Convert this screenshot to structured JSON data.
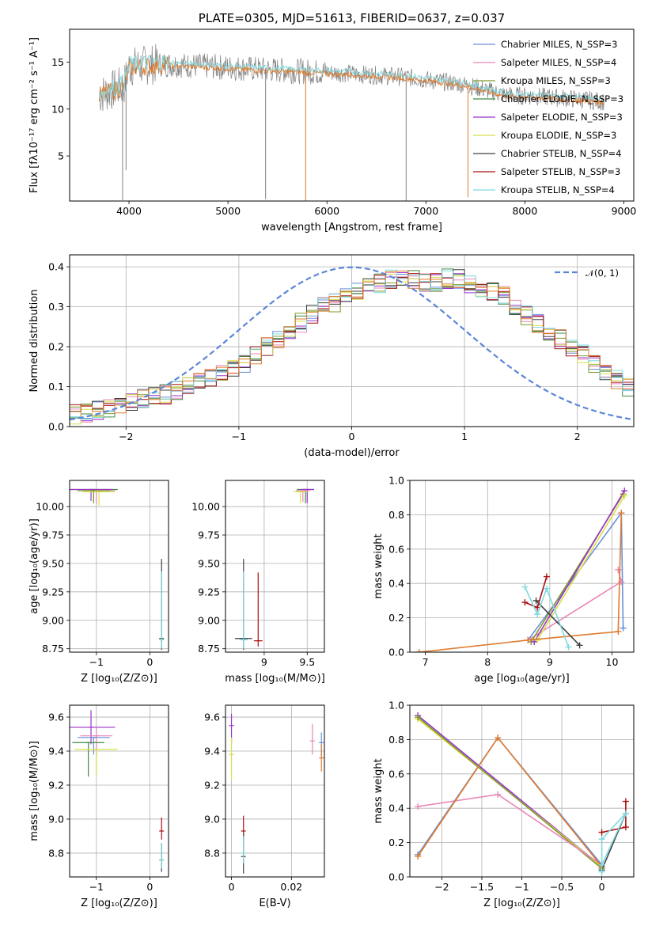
{
  "chart_data": [
    {
      "panel": "spectrum",
      "type": "line",
      "title": "PLATE=0305, MJD=51613, FIBERID=0637, z=0.037",
      "xlabel": "wavelength [Angstrom, rest frame]",
      "ylabel": "Flux [fλ10⁻¹⁷ erg cm⁻² s⁻¹ A⁻¹]",
      "xlim": [
        3400,
        9100
      ],
      "ylim": [
        0.2,
        18.5
      ],
      "xticks": [
        4000,
        5000,
        6000,
        7000,
        8000,
        9000
      ],
      "yticks": [
        5,
        10,
        15
      ],
      "grid": false,
      "data_color": "#808080",
      "model_colors": [
        "#e07b2e",
        "#7fd9e0"
      ],
      "data_trend": {
        "x": [
          3700,
          3950,
          4000,
          4300,
          4700,
          5200,
          5800,
          6200,
          6800,
          7400,
          7800,
          8200,
          8600,
          8800
        ],
        "y": [
          11.5,
          12.5,
          14.5,
          14.8,
          14.6,
          14.3,
          14.0,
          13.8,
          13.4,
          12.6,
          11.5,
          11.3,
          11.0,
          10.8
        ]
      },
      "dips": [
        {
          "x": 3935,
          "y": 0.3
        },
        {
          "x": 3970,
          "y": 3.5
        },
        {
          "x": 5380,
          "y": 0.4
        },
        {
          "x": 5785,
          "y": 0.2
        },
        {
          "x": 6800,
          "y": 0.2
        },
        {
          "x": 7425,
          "y": 0.6
        }
      ],
      "legend_position": "upper right",
      "legend": [
        {
          "label": "Chabrier MILES, N_SSP=3",
          "color": "#6a8fd8"
        },
        {
          "label": "Salpeter MILES, N_SSP=4",
          "color": "#e887b6"
        },
        {
          "label": "Kroupa MILES, N_SSP=3",
          "color": "#7f9a2a"
        },
        {
          "label": "Chabrier ELODIE, N_SSP=3",
          "color": "#3f8a45"
        },
        {
          "label": "Salpeter ELODIE, N_SSP=3",
          "color": "#9a33c8"
        },
        {
          "label": "Kroupa ELODIE, N_SSP=3",
          "color": "#d8e04a"
        },
        {
          "label": "Chabrier STELIB, N_SSP=4",
          "color": "#404040"
        },
        {
          "label": "Salpeter STELIB, N_SSP=3",
          "color": "#aa1010"
        },
        {
          "label": "Kroupa STELIB, N_SSP=4",
          "color": "#7fd9e0"
        }
      ]
    },
    {
      "panel": "residuals",
      "type": "histogram",
      "xlabel": "(data-model)/error",
      "ylabel": "Normed distribution",
      "xlim": [
        -2.5,
        2.5
      ],
      "ylim": [
        0,
        0.43
      ],
      "xticks": [
        -2,
        -1,
        0,
        1,
        2
      ],
      "yticks": [
        0.0,
        0.1,
        0.2,
        0.3,
        0.4
      ],
      "grid": true,
      "bin_width": 0.1,
      "bin_start": -2.5,
      "shape": [
        0.03,
        0.035,
        0.04,
        0.045,
        0.05,
        0.06,
        0.07,
        0.075,
        0.08,
        0.09,
        0.1,
        0.11,
        0.12,
        0.13,
        0.15,
        0.16,
        0.18,
        0.2,
        0.22,
        0.24,
        0.26,
        0.28,
        0.3,
        0.31,
        0.33,
        0.34,
        0.35,
        0.36,
        0.37,
        0.37,
        0.37,
        0.36,
        0.36,
        0.37,
        0.37,
        0.36,
        0.35,
        0.34,
        0.33,
        0.3,
        0.28,
        0.26,
        0.24,
        0.22,
        0.2,
        0.18,
        0.16,
        0.14,
        0.12,
        0.1
      ],
      "series_colors": [
        "#6a8fd8",
        "#e887b6",
        "#7f9a2a",
        "#3f8a45",
        "#9a33c8",
        "#d8e04a",
        "#404040",
        "#aa1010",
        "#7fd9e0",
        "#e07b2e"
      ],
      "normal": {
        "label": "𝒩(0, 1)",
        "color": "#5b86d8",
        "mean": 0,
        "sd": 1
      },
      "legend_position": "upper right"
    },
    {
      "panel": "age-vs-Z",
      "type": "errorbar",
      "xlabel": "Z [log₁₀(Z/Z⊙)]",
      "ylabel": "age  [log₁₀(age/yr)]",
      "xlim": [
        -1.5,
        0.35
      ],
      "ylim": [
        8.72,
        10.23
      ],
      "xticks": [
        -1,
        0
      ],
      "yticks": [
        8.75,
        9.0,
        9.25,
        9.5,
        9.75,
        10.0,
        10.25
      ],
      "grid": true,
      "points": [
        {
          "x": -1.05,
          "y": 10.15,
          "xerr": 0.45,
          "yerr": [
            0.12,
            0
          ],
          "color": "#3f8a45"
        },
        {
          "x": -1.0,
          "y": 10.14,
          "xerr": 0.35,
          "yerr": [
            0.12,
            0
          ],
          "color": "#e887b6"
        },
        {
          "x": -1.1,
          "y": 10.15,
          "xerr": 0.4,
          "yerr": [
            0.1,
            0
          ],
          "color": "#9a33c8"
        },
        {
          "x": -0.95,
          "y": 10.13,
          "xerr": 0.3,
          "yerr": [
            0.12,
            0
          ],
          "color": "#d8e04a"
        },
        {
          "x": -1.05,
          "y": 10.14,
          "xerr": 0.3,
          "yerr": [
            0.1,
            0
          ],
          "color": "#7f9a2a"
        },
        {
          "x": 0.22,
          "y": 8.84,
          "xerr": 0.0,
          "yerr": [
            0.1,
            0.7
          ],
          "color": "#404040"
        },
        {
          "x": 0.22,
          "y": 8.83,
          "xerr": 0.0,
          "yerr": [
            0.08,
            0.6
          ],
          "color": "#7fd9e0"
        }
      ]
    },
    {
      "panel": "age-vs-mass",
      "type": "errorbar",
      "xlabel": "mass [log₁₀(M/M⊙)]",
      "xlim": [
        8.55,
        9.7
      ],
      "ylim": [
        8.72,
        10.23
      ],
      "xticks": [
        9.0,
        9.5
      ],
      "yticks": [
        8.75,
        9.0,
        9.25,
        9.5,
        9.75,
        10.0,
        10.25
      ],
      "grid": true,
      "points": [
        {
          "x": 9.48,
          "y": 10.15,
          "xerr": 0.1,
          "yerr": [
            0.12,
            0
          ],
          "color": "#3f8a45"
        },
        {
          "x": 9.5,
          "y": 10.15,
          "xerr": 0.08,
          "yerr": [
            0.12,
            0
          ],
          "color": "#9a33c8"
        },
        {
          "x": 9.45,
          "y": 10.14,
          "xerr": 0.08,
          "yerr": [
            0.1,
            0
          ],
          "color": "#e887b6"
        },
        {
          "x": 9.42,
          "y": 10.13,
          "xerr": 0.08,
          "yerr": [
            0.1,
            0
          ],
          "color": "#d8e04a"
        },
        {
          "x": 8.76,
          "y": 8.84,
          "xerr": 0.1,
          "yerr": [
            0.1,
            0.7
          ],
          "color": "#404040"
        },
        {
          "x": 8.93,
          "y": 8.82,
          "xerr": 0.05,
          "yerr": [
            0.05,
            0.6
          ],
          "color": "#aa1010"
        },
        {
          "x": 8.76,
          "y": 8.83,
          "xerr": 0.05,
          "yerr": [
            0.08,
            0.6
          ],
          "color": "#7fd9e0"
        }
      ]
    },
    {
      "panel": "mass-weight-vs-age",
      "type": "line",
      "xlabel": "age  [log₁₀(age/yr)]",
      "ylabel": "mass weight",
      "xlim": [
        6.75,
        10.35
      ],
      "ylim": [
        0.0,
        1.0
      ],
      "xticks": [
        7,
        8,
        9,
        10
      ],
      "yticks": [
        0.0,
        0.2,
        0.4,
        0.6,
        0.8,
        1.0
      ],
      "grid": true,
      "series": [
        {
          "color": "#6a8fd8",
          "x": [
            8.65,
            10.15,
            10.18
          ],
          "y": [
            0.07,
            0.81,
            0.14
          ]
        },
        {
          "color": "#e887b6",
          "x": [
            8.65,
            10.15,
            10.1
          ],
          "y": [
            0.07,
            0.41,
            0.48
          ]
        },
        {
          "color": "#7f9a2a",
          "x": [
            8.7,
            10.18
          ],
          "y": [
            0.06,
            0.92
          ]
        },
        {
          "color": "#9a33c8",
          "x": [
            8.75,
            10.2
          ],
          "y": [
            0.06,
            0.94
          ]
        },
        {
          "color": "#d8e04a",
          "x": [
            8.8,
            10.2
          ],
          "y": [
            0.07,
            0.91
          ]
        },
        {
          "color": "#e07b2e",
          "x": [
            6.9,
            8.65,
            10.1,
            10.15
          ],
          "y": [
            0.0,
            0.07,
            0.12,
            0.81
          ]
        },
        {
          "color": "#404040",
          "x": [
            8.78,
            9.48
          ],
          "y": [
            0.3,
            0.04
          ]
        },
        {
          "color": "#aa1010",
          "x": [
            8.6,
            8.8,
            8.95
          ],
          "y": [
            0.29,
            0.26,
            0.44
          ]
        },
        {
          "color": "#7fd9e0",
          "x": [
            8.6,
            8.8,
            8.95,
            9.3
          ],
          "y": [
            0.38,
            0.22,
            0.37,
            0.03
          ]
        }
      ]
    },
    {
      "panel": "mass-vs-Z",
      "type": "errorbar",
      "xlabel": "Z [log₁₀(Z/Z⊙)]",
      "ylabel": "mass [log₁₀(M/M⊙)]",
      "xlim": [
        -1.5,
        0.35
      ],
      "ylim": [
        8.66,
        9.67
      ],
      "xticks": [
        -1,
        0
      ],
      "yticks": [
        8.8,
        9.0,
        9.2,
        9.4,
        9.6
      ],
      "grid": true,
      "points": [
        {
          "x": -1.1,
          "y": 9.54,
          "xerr": 0.45,
          "yerr": [
            0.1,
            0.1
          ],
          "color": "#9a33c8"
        },
        {
          "x": -1.0,
          "y": 9.49,
          "xerr": 0.3,
          "yerr": [
            0.12,
            0.05
          ],
          "color": "#e887b6"
        },
        {
          "x": -1.05,
          "y": 9.48,
          "xerr": 0.3,
          "yerr": [
            0.1,
            0.0
          ],
          "color": "#6a8fd8"
        },
        {
          "x": -1.15,
          "y": 9.45,
          "xerr": 0.3,
          "yerr": [
            0.2,
            0.0
          ],
          "color": "#3f8a45"
        },
        {
          "x": -1.0,
          "y": 9.41,
          "xerr": 0.4,
          "yerr": [
            0.15,
            0.0
          ],
          "color": "#d8e04a"
        },
        {
          "x": 0.22,
          "y": 8.93,
          "xerr": 0.0,
          "yerr": [
            0.05,
            0.08
          ],
          "color": "#aa1010"
        },
        {
          "x": 0.22,
          "y": 8.76,
          "xerr": 0.0,
          "yerr": [
            0.07,
            0.1
          ],
          "color": "#404040"
        },
        {
          "x": 0.22,
          "y": 8.76,
          "xerr": 0.0,
          "yerr": [
            0.05,
            0.1
          ],
          "color": "#7fd9e0"
        }
      ]
    },
    {
      "panel": "mass-vs-EBV",
      "type": "errorbar",
      "xlabel": "E(B-V)",
      "xlim": [
        -0.002,
        0.031
      ],
      "ylim": [
        8.66,
        9.67
      ],
      "xticks": [
        0.0,
        0.02
      ],
      "yticks": [
        8.8,
        9.0,
        9.2,
        9.4,
        9.6
      ],
      "grid": true,
      "points": [
        {
          "x": 0.0,
          "y": 9.55,
          "xerr": 0.0,
          "yerr": [
            0.1,
            0.07
          ],
          "color": "#9a33c8"
        },
        {
          "x": 0.0,
          "y": 9.38,
          "xerr": 0.0,
          "yerr": [
            0.15,
            0.1
          ],
          "color": "#d8e04a"
        },
        {
          "x": 0.027,
          "y": 9.46,
          "xerr": 0.0,
          "yerr": [
            0.08,
            0.1
          ],
          "color": "#e887b6"
        },
        {
          "x": 0.03,
          "y": 9.45,
          "xerr": 0.0,
          "yerr": [
            0.08,
            0.06
          ],
          "color": "#6a8fd8"
        },
        {
          "x": 0.03,
          "y": 9.36,
          "xerr": 0.0,
          "yerr": [
            0.08,
            0.08
          ],
          "color": "#e07b2e"
        },
        {
          "x": 0.004,
          "y": 8.93,
          "xerr": 0.0,
          "yerr": [
            0.05,
            0.09
          ],
          "color": "#aa1010"
        },
        {
          "x": 0.004,
          "y": 8.78,
          "xerr": 0.0,
          "yerr": [
            0.1,
            0.13
          ],
          "color": "#404040"
        },
        {
          "x": 0.004,
          "y": 8.8,
          "xerr": 0.0,
          "yerr": [
            0.06,
            0.1
          ],
          "color": "#7fd9e0"
        }
      ]
    },
    {
      "panel": "mass-weight-vs-Z",
      "type": "line",
      "xlabel": "Z [log₁₀(Z/Z⊙)]",
      "ylabel": "mass weight",
      "xlim": [
        -2.4,
        0.4
      ],
      "ylim": [
        0.0,
        1.0
      ],
      "xticks": [
        -2.0,
        -1.5,
        -1.0,
        -0.5,
        0.0
      ],
      "yticks": [
        0.0,
        0.2,
        0.4,
        0.6,
        0.8,
        1.0
      ],
      "grid": true,
      "series": [
        {
          "color": "#9a33c8",
          "x": [
            -2.3,
            0.0
          ],
          "y": [
            0.94,
            0.06
          ]
        },
        {
          "color": "#d8e04a",
          "x": [
            -2.3,
            0.0
          ],
          "y": [
            0.92,
            0.06
          ]
        },
        {
          "color": "#7f9a2a",
          "x": [
            -2.3,
            0.0
          ],
          "y": [
            0.93,
            0.05
          ]
        },
        {
          "color": "#e887b6",
          "x": [
            -2.3,
            -1.3,
            0.0
          ],
          "y": [
            0.41,
            0.48,
            0.07
          ]
        },
        {
          "color": "#6a8fd8",
          "x": [
            -2.3,
            -1.3,
            0.0
          ],
          "y": [
            0.13,
            0.81,
            0.07
          ]
        },
        {
          "color": "#e07b2e",
          "x": [
            -2.3,
            -1.3,
            0.0
          ],
          "y": [
            0.12,
            0.81,
            0.06
          ]
        },
        {
          "color": "#aa1010",
          "x": [
            0.0,
            0.3,
            0.3
          ],
          "y": [
            0.26,
            0.29,
            0.44
          ]
        },
        {
          "color": "#404040",
          "x": [
            0.0,
            0.3
          ],
          "y": [
            0.04,
            0.37
          ]
        },
        {
          "color": "#7fd9e0",
          "x": [
            0.0,
            0.0,
            0.3,
            0.0
          ],
          "y": [
            0.03,
            0.22,
            0.37,
            0.07
          ]
        }
      ]
    }
  ]
}
